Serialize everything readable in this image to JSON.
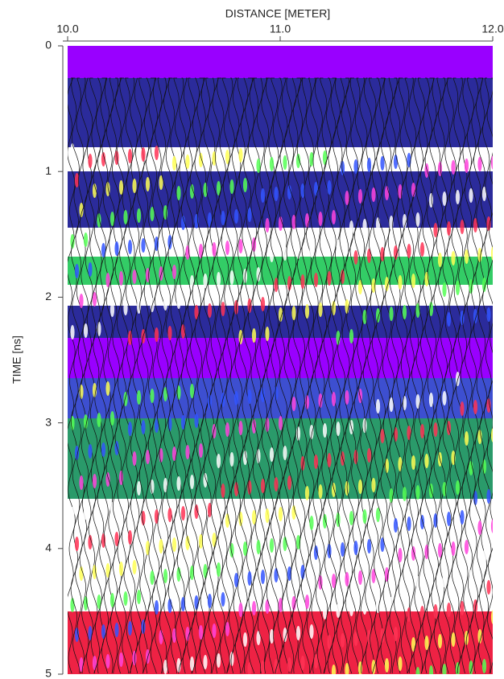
{
  "chart_data": {
    "type": "radargram",
    "xlabel": "DISTANCE [METER]",
    "ylabel": "TIME [ns]",
    "xlim": [
      10,
      12
    ],
    "xticks": [
      {
        "value": 10,
        "label": "10.0"
      },
      {
        "value": 11,
        "label": "11.0"
      },
      {
        "value": 12,
        "label": "12.0"
      }
    ],
    "ylim": [
      0,
      5
    ],
    "yticks": [
      0,
      1,
      2,
      3,
      4,
      5
    ],
    "y_inverted": true
  }
}
